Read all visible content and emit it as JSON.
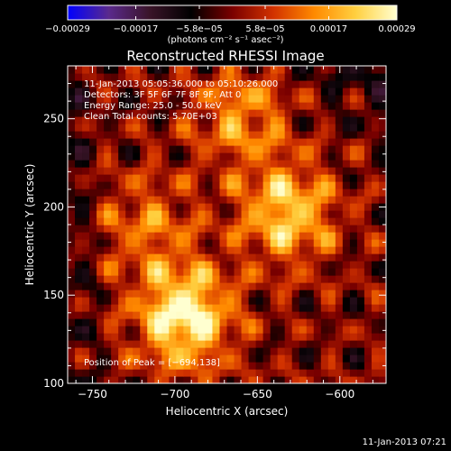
{
  "chart_data": {
    "type": "heatmap",
    "title": "Reconstructed RHESSI Image",
    "xlabel": "Heliocentric X (arcsec)",
    "ylabel": "Heliocentric Y (arcsec)",
    "xlim": [
      -765,
      -572
    ],
    "ylim": [
      100,
      280
    ],
    "x_ticks": [
      -750,
      -700,
      -650,
      -600
    ],
    "x_tick_labels": [
      "−750",
      "−700",
      "−650",
      "−600"
    ],
    "y_ticks": [
      100,
      150,
      200,
      250
    ],
    "y_tick_labels": [
      "100",
      "150",
      "200",
      "250"
    ],
    "colorbar": {
      "min": -0.00029,
      "max": 0.00029,
      "ticks": [
        -0.00029,
        -0.00017,
        -5.8e-05,
        5.8e-05,
        0.00017,
        0.00029
      ],
      "tick_labels": [
        "−0.00029",
        "−0.00017",
        "−5.8e−05",
        "5.8e−05",
        "0.00017",
        "0.00029"
      ],
      "units_label": "(photons cm⁻² s⁻¹ asec⁻²)",
      "colormap": [
        "#0000ff",
        "#5a2a8c",
        "#3a1428",
        "#000000",
        "#7a0000",
        "#d23200",
        "#ff8a00",
        "#ffd040",
        "#ffffd0"
      ]
    },
    "annotations": [
      "11-Jan-2013 05:05:36.000 to 05:10:26.000",
      "Detectors: 3F 5F 6F 7F 8F 9F, Att 0",
      "Energy Range: 25.0 - 50.0 keV",
      "Clean    Total counts: 5.70E+03"
    ],
    "peak_label": "Position of Peak = [−694,138]",
    "peak": [
      -694,
      138
    ],
    "sources": [
      {
        "x": -694,
        "y": 138,
        "intensity": 0.00029
      },
      {
        "x": -632,
        "y": 197,
        "intensity": 0.00022
      },
      {
        "x": -660,
        "y": 252,
        "intensity": 0.00015
      },
      {
        "x": -716,
        "y": 190,
        "intensity": 0.00012
      }
    ]
  },
  "footer": {
    "timestamp": "11-Jan-2013 07:21"
  }
}
